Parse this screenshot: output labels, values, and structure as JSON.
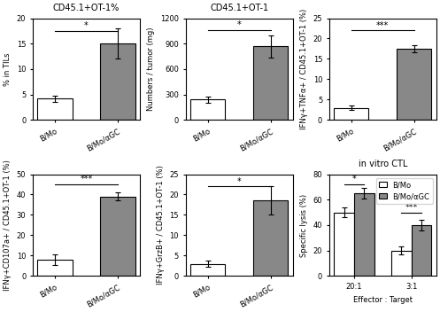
{
  "chart_data": [
    {
      "type": "bar",
      "title": "CD45.1+OT-1%",
      "ylabel": "% in TILs",
      "categories": [
        "B/Mo",
        "B/Mo/αGC"
      ],
      "values": [
        4.2,
        15.0
      ],
      "errors": [
        0.6,
        3.0
      ],
      "colors": [
        "#ffffff",
        "#888888"
      ],
      "ylim": [
        0,
        20
      ],
      "yticks": [
        0,
        5,
        10,
        15,
        20
      ],
      "annotations": [
        {
          "text": "*",
          "y": 17.5
        }
      ]
    },
    {
      "type": "bar",
      "title": "CD45.1+OT-1",
      "ylabel": "Numbers / tumor (mg)",
      "categories": [
        "B/Mo",
        "B/Mo/αGC"
      ],
      "values": [
        240,
        870
      ],
      "errors": [
        40,
        130
      ],
      "colors": [
        "#ffffff",
        "#888888"
      ],
      "ylim": [
        0,
        1200
      ],
      "yticks": [
        0,
        300,
        600,
        900,
        1200
      ],
      "annotations": [
        {
          "text": "*",
          "y": 1060
        }
      ]
    },
    {
      "type": "bar",
      "ylabel": "IFNγ+TNFα+ / CD45.1+OT-1 (%)",
      "categories": [
        "B/Mo",
        "B/Mo/αGC"
      ],
      "values": [
        3.0,
        17.5
      ],
      "errors": [
        0.5,
        0.8
      ],
      "colors": [
        "#ffffff",
        "#888888"
      ],
      "ylim": [
        0,
        25
      ],
      "yticks": [
        0,
        5,
        10,
        15,
        20,
        25
      ],
      "annotations": [
        {
          "text": "***",
          "y": 22
        }
      ]
    },
    {
      "type": "bar",
      "ylabel": "IFNγ+CD107a+ / CD45.1+OT-1 (%)",
      "categories": [
        "B/Mo",
        "B/Mo/αGC"
      ],
      "values": [
        8.0,
        39.0
      ],
      "errors": [
        2.5,
        2.0
      ],
      "colors": [
        "#ffffff",
        "#888888"
      ],
      "ylim": [
        0,
        50
      ],
      "yticks": [
        0,
        10,
        20,
        30,
        40,
        50
      ],
      "annotations": [
        {
          "text": "***",
          "y": 45
        }
      ]
    },
    {
      "type": "bar",
      "ylabel": "IFNγ+GrzB+ / CD45.1+OT-1 (%)",
      "categories": [
        "B/Mo",
        "B/Mo/αGC"
      ],
      "values": [
        3.0,
        18.5
      ],
      "errors": [
        0.8,
        3.5
      ],
      "colors": [
        "#ffffff",
        "#888888"
      ],
      "ylim": [
        0,
        25
      ],
      "yticks": [
        0,
        5,
        10,
        15,
        20,
        25
      ],
      "annotations": [
        {
          "text": "*",
          "y": 22
        }
      ]
    },
    {
      "type": "bar",
      "title": "in vitro CTL",
      "ylabel": "Specific lysis (%)",
      "xlabel": "Effector : Target",
      "categories": [
        "20:1",
        "3:1"
      ],
      "series": [
        {
          "name": "B/Mo",
          "values": [
            50,
            20
          ],
          "errors": [
            4,
            3
          ],
          "color": "#ffffff"
        },
        {
          "name": "B/Mo/αGC",
          "values": [
            65,
            40
          ],
          "errors": [
            4,
            4
          ],
          "color": "#888888"
        }
      ],
      "ylim": [
        0,
        80
      ],
      "yticks": [
        0,
        20,
        40,
        60,
        80
      ],
      "legend": "upper right",
      "annotations": [
        {
          "text": "*",
          "category": "20:1",
          "y": 72
        },
        {
          "text": "***",
          "category": "3:1",
          "y": 50
        }
      ]
    }
  ]
}
